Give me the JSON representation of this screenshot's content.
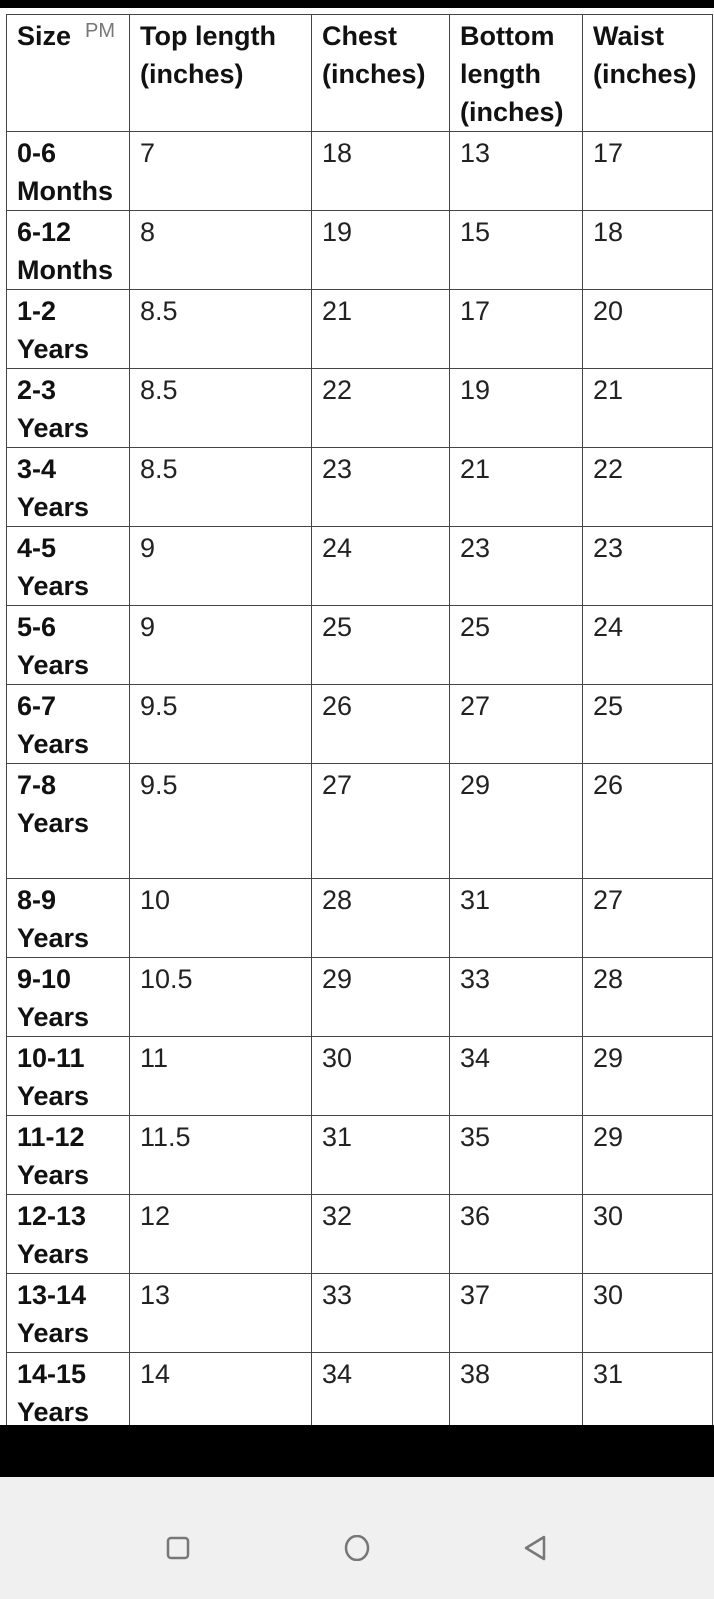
{
  "status_bar": {
    "time_suffix": "PM"
  },
  "table": {
    "headers": [
      "Size",
      "Top length (inches)",
      "Chest (inches)",
      "Bottom length (inches)",
      "Waist (inches)"
    ],
    "rows": [
      [
        "0-6 Months",
        "7",
        "18",
        "13",
        "17"
      ],
      [
        "6-12 Months",
        "8",
        "19",
        "15",
        "18"
      ],
      [
        "1-2 Years",
        "8.5",
        "21",
        "17",
        "20"
      ],
      [
        "2-3 Years",
        "8.5",
        "22",
        "19",
        "21"
      ],
      [
        "3-4 Years",
        "8.5",
        "23",
        "21",
        "22"
      ],
      [
        "4-5 Years",
        "9",
        "24",
        "23",
        "23"
      ],
      [
        "5-6 Years",
        "9",
        "25",
        "25",
        "24"
      ],
      [
        "6-7 Years",
        "9.5",
        "26",
        "27",
        "25"
      ],
      [
        "7-8 Years",
        "9.5",
        "27",
        "29",
        "26"
      ],
      [
        "8-9 Years",
        "10",
        "28",
        "31",
        "27"
      ],
      [
        "9-10 Years",
        "10.5",
        "29",
        "33",
        "28"
      ],
      [
        "10-11 Years",
        "11",
        "30",
        "34",
        "29"
      ],
      [
        "11-12 Years",
        "11.5",
        "31",
        "35",
        "29"
      ],
      [
        "12-13 Years",
        "12",
        "32",
        "36",
        "30"
      ],
      [
        "13-14 Years",
        "13",
        "33",
        "37",
        "30"
      ],
      [
        "14-15 Years",
        "14",
        "34",
        "38",
        "31"
      ]
    ]
  },
  "nav": {
    "icons": [
      "recent-apps-icon",
      "home-icon",
      "back-icon"
    ],
    "icon_color": "#777777",
    "bg": "#f0f0f0"
  }
}
